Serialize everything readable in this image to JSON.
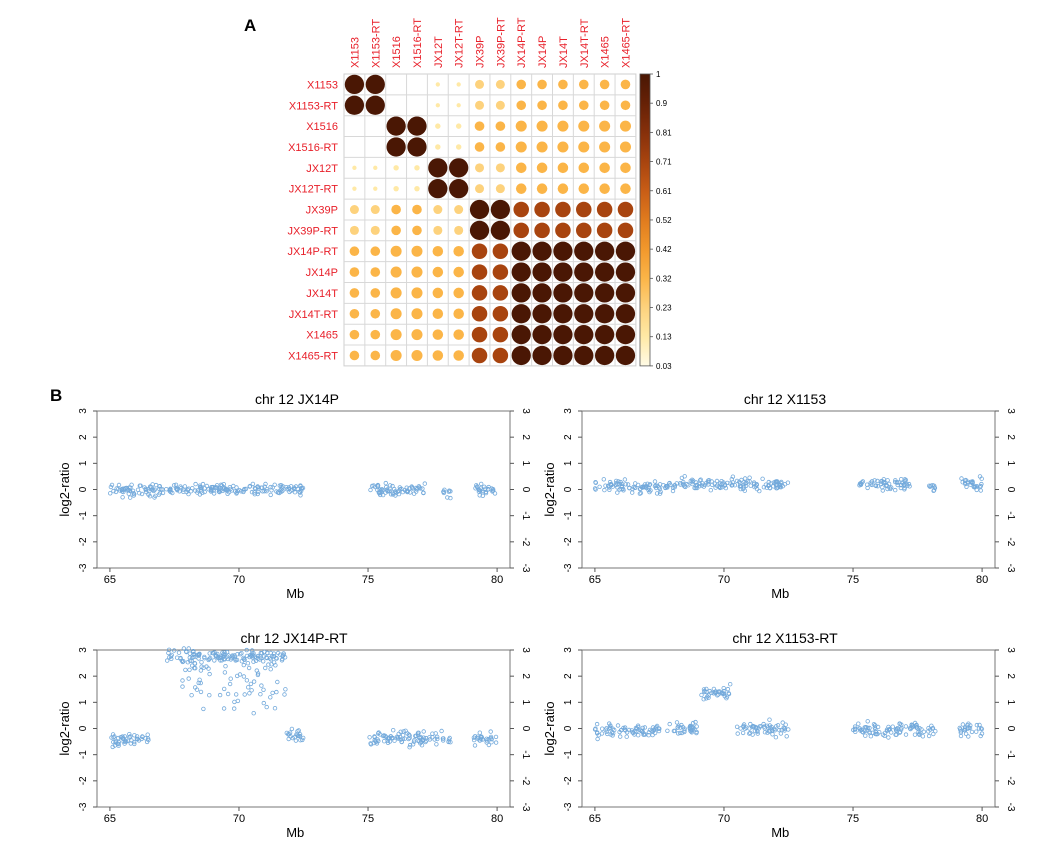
{
  "panel_labels": {
    "a": "A",
    "b": "B"
  },
  "chart_data": [
    {
      "type": "heatmap",
      "subtype": "correlation-circles",
      "labels": [
        "X1153",
        "X1153-RT",
        "X1516",
        "X1516-RT",
        "JX12T",
        "JX12T-RT",
        "JX39P",
        "JX39P-RT",
        "JX14P-RT",
        "JX14P",
        "JX14T",
        "JX14T-RT",
        "X1465",
        "X1465-RT"
      ],
      "label_color": "#e8202a",
      "groups": [
        "X1153",
        "X1153",
        "X1516",
        "X1516",
        "JX12T",
        "JX12T",
        "JX39P",
        "JX39P",
        "JX14",
        "JX14",
        "JX14",
        "JX14",
        "JX14",
        "JX14"
      ],
      "values": {
        "same_group": 1.0,
        "jx39_with_jx14": 0.65,
        "jx14_with_jx14": 1.0,
        "x1516_with_jx14": 0.33,
        "x1516_with_jx39": 0.25,
        "jx12_with_jx14": 0.3,
        "jx12_with_jx39": 0.22,
        "x1153_with_jx14": 0.25,
        "x1153_with_jx39": 0.22,
        "x1153_with_x1516": 0.0,
        "x1153_with_jx12": 0.05,
        "x1516_with_jx12": 0.08
      },
      "colorbar": {
        "ticks": [
          "1",
          "0.9",
          "0.81",
          "0.71",
          "0.61",
          "0.52",
          "0.42",
          "0.32",
          "0.23",
          "0.13",
          "0.03"
        ],
        "colors": [
          "#fffbe6",
          "#ffe9a6",
          "#fdd27d",
          "#fbb548",
          "#f2982c",
          "#e07b1e",
          "#c85d16",
          "#a8440f",
          "#86300b",
          "#662106",
          "#4a1704"
        ]
      }
    },
    {
      "type": "scatter",
      "title": "chr 12 JX14P",
      "xlabel": "Mb",
      "ylabel": "log2-ratio",
      "xlim": [
        64.5,
        80.5
      ],
      "ylim": [
        -3,
        3
      ],
      "xticks": [
        "65",
        "70",
        "75",
        "80"
      ],
      "yticks": [
        "3",
        "2",
        "1",
        "0",
        "-1",
        "-2",
        "-3"
      ],
      "segments": [
        {
          "x": [
            65.0,
            66.2
          ],
          "y": -0.02
        },
        {
          "x": [
            66.2,
            67.2
          ],
          "y": -0.02
        },
        {
          "x": [
            67.3,
            68.2
          ],
          "y": 0.0
        },
        {
          "x": [
            68.3,
            72.5
          ],
          "y": 0.02
        },
        {
          "x": [
            75.0,
            77.2
          ],
          "y": -0.02
        },
        {
          "x": [
            77.9,
            78.2
          ],
          "y": -0.08
        },
        {
          "x": [
            79.1,
            80.0
          ],
          "y": 0.02
        }
      ],
      "spread": 0.22,
      "point_color": "#5b9bd5"
    },
    {
      "type": "scatter",
      "title": "chr 12 X1153",
      "xlabel": "Mb",
      "ylabel": "log2-ratio",
      "xlim": [
        64.5,
        80.5
      ],
      "ylim": [
        -3,
        3
      ],
      "xticks": [
        "65",
        "70",
        "75",
        "80"
      ],
      "yticks": [
        "3",
        "2",
        "1",
        "0",
        "-1",
        "-2",
        "-3"
      ],
      "segments": [
        {
          "x": [
            65.0,
            66.2
          ],
          "y": 0.15
        },
        {
          "x": [
            66.2,
            67.2
          ],
          "y": 0.1
        },
        {
          "x": [
            67.3,
            68.2
          ],
          "y": 0.1
        },
        {
          "x": [
            68.3,
            72.5
          ],
          "y": 0.2
        },
        {
          "x": [
            75.2,
            77.2
          ],
          "y": 0.2
        },
        {
          "x": [
            77.9,
            78.2
          ],
          "y": 0.05
        },
        {
          "x": [
            79.1,
            80.0
          ],
          "y": 0.2
        }
      ],
      "spread": 0.22,
      "point_color": "#5b9bd5"
    },
    {
      "type": "scatter",
      "title": "chr 12 JX14P-RT",
      "xlabel": "Mb",
      "ylabel": "log2-ratio",
      "xlim": [
        64.5,
        80.5
      ],
      "ylim": [
        -3,
        3
      ],
      "xticks": [
        "65",
        "70",
        "75",
        "80"
      ],
      "yticks": [
        "3",
        "2",
        "1",
        "0",
        "-1",
        "-2",
        "-3"
      ],
      "segments": [
        {
          "x": [
            65.0,
            66.5
          ],
          "y": -0.45
        },
        {
          "x": [
            67.2,
            71.8
          ],
          "y": 2.75
        },
        {
          "x": [
            71.8,
            72.5
          ],
          "y": -0.3
        },
        {
          "x": [
            75.0,
            78.2
          ],
          "y": -0.4
        },
        {
          "x": [
            79.1,
            80.0
          ],
          "y": -0.4
        }
      ],
      "scatter_below_band": {
        "x": [
          67.8,
          71.8
        ],
        "y": [
          0.5,
          2.5
        ]
      },
      "spread": 0.25,
      "point_color": "#5b9bd5"
    },
    {
      "type": "scatter",
      "title": "chr 12 X1153-RT",
      "xlabel": "Mb",
      "ylabel": "log2-ratio",
      "xlim": [
        64.5,
        80.5
      ],
      "ylim": [
        -3,
        3
      ],
      "xticks": [
        "65",
        "70",
        "75",
        "80"
      ],
      "yticks": [
        "3",
        "2",
        "1",
        "0",
        "-1",
        "-2",
        "-3"
      ],
      "segments": [
        {
          "x": [
            65.0,
            67.5
          ],
          "y": -0.05
        },
        {
          "x": [
            67.8,
            69.0
          ],
          "y": 0.0
        },
        {
          "x": [
            69.1,
            70.3
          ],
          "y": 1.35
        },
        {
          "x": [
            70.5,
            72.5
          ],
          "y": 0.0
        },
        {
          "x": [
            75.0,
            78.2
          ],
          "y": -0.05
        },
        {
          "x": [
            79.1,
            80.0
          ],
          "y": -0.05
        }
      ],
      "spread": 0.25,
      "point_color": "#5b9bd5"
    }
  ]
}
